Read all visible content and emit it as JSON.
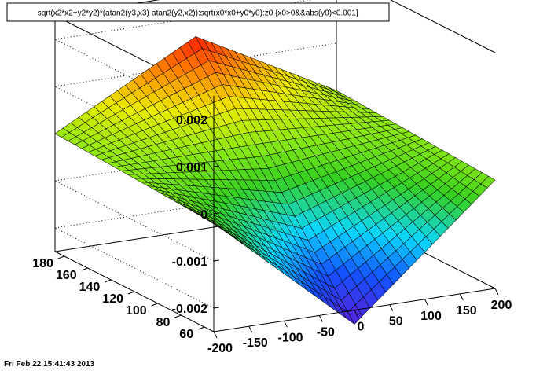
{
  "title": "sqrt(x2*x2+y2*y2)*(atan2(y3,x3)-atan2(y2,x2)):sqrt(x0*x0+y0*y0):z0 {x0>0&&abs(y0)<0.001}",
  "datestamp": "Fri Feb 22 15:41:43 2013",
  "colors": {
    "frame": "#000000",
    "grid": "#000000",
    "mesh": "#000000",
    "palette_low": "#5a1fd6",
    "palette_mid": "#36d020",
    "palette_high": "#ff1c00"
  },
  "chart_data": {
    "type": "surface",
    "grid_style": "dotted",
    "xaxis_ticks": [
      "-200",
      "-150",
      "-100",
      "-50",
      "0",
      "50",
      "100",
      "150",
      "200"
    ],
    "yaxis_ticks": [
      "60",
      "80",
      "100",
      "120",
      "140",
      "160",
      "180"
    ],
    "zaxis_ticks": [
      "-0.002",
      "-0.001",
      "0",
      "0.001",
      "0.002"
    ],
    "xlim": [
      -200,
      200
    ],
    "ylim": [
      52,
      188
    ],
    "zlim": [
      -0.0025,
      0.0025
    ],
    "x_tick_values": [
      -200,
      -150,
      -100,
      -50,
      0,
      50,
      100,
      150,
      200
    ],
    "y_tick_values": [
      60,
      80,
      100,
      120,
      140,
      160,
      180
    ],
    "z_tick_values": [
      -0.002,
      -0.001,
      0,
      0.001,
      0.002
    ],
    "surface_description_points": [
      {
        "x": 0,
        "y": 55,
        "z": -0.0028
      },
      {
        "x": 0,
        "y": 185,
        "z": 0.0016
      },
      {
        "x": -200,
        "y": 185,
        "z": 0.0
      },
      {
        "x": 200,
        "y": 185,
        "z": 0.0
      },
      {
        "x": -200,
        "y": 55,
        "z": -0.0002
      },
      {
        "x": 200,
        "y": 55,
        "z": -0.0002
      }
    ]
  }
}
